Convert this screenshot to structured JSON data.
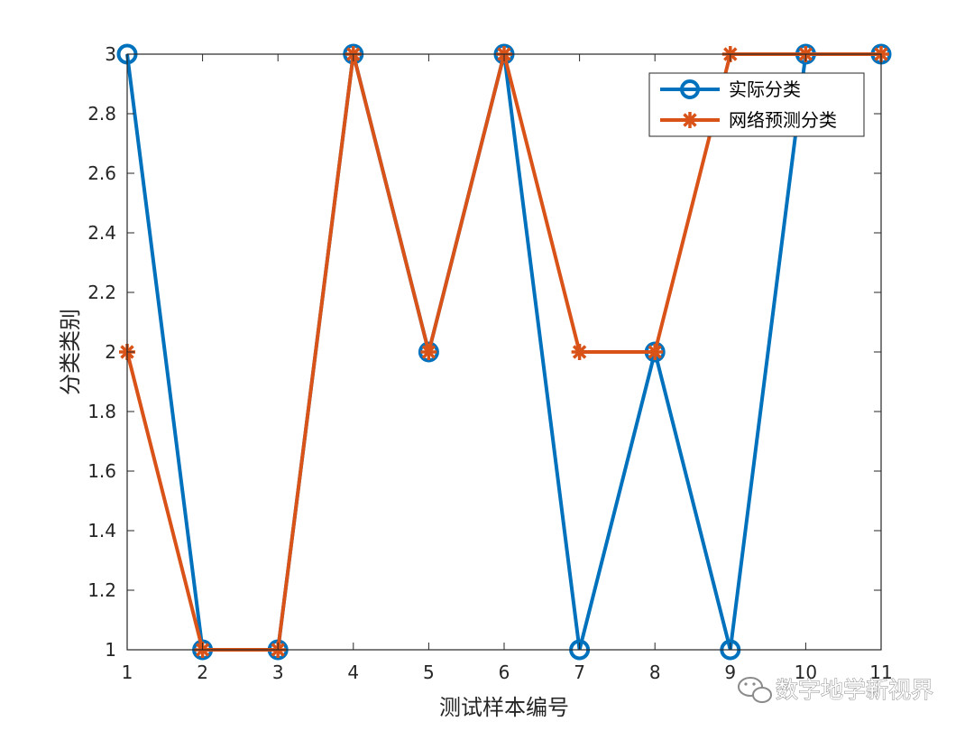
{
  "chart_data": {
    "type": "line",
    "x": [
      1,
      2,
      3,
      4,
      5,
      6,
      7,
      8,
      9,
      10,
      11
    ],
    "series": [
      {
        "name": "实际分类",
        "values": [
          3,
          1,
          1,
          3,
          2,
          3,
          1,
          2,
          1,
          3,
          3
        ],
        "color": "#0072bd",
        "marker": "circle"
      },
      {
        "name": "网络预测分类",
        "values": [
          2,
          1,
          1,
          3,
          2,
          3,
          2,
          2,
          3,
          3,
          3
        ],
        "color": "#d95319",
        "marker": "asterisk"
      }
    ],
    "xlabel": "测试样本编号",
    "ylabel": "分类类别",
    "xlim": [
      1,
      11
    ],
    "ylim": [
      1,
      3
    ],
    "xticks": [
      "1",
      "2",
      "3",
      "4",
      "5",
      "6",
      "7",
      "8",
      "9",
      "10",
      "11"
    ],
    "yticks": [
      "1",
      "1.2",
      "1.4",
      "1.6",
      "1.8",
      "2",
      "2.2",
      "2.4",
      "2.6",
      "2.8",
      "3"
    ],
    "grid": false,
    "legend_position": "top-right"
  },
  "watermark": {
    "text": "数字地学新视界",
    "icon": "wechat-icon"
  }
}
